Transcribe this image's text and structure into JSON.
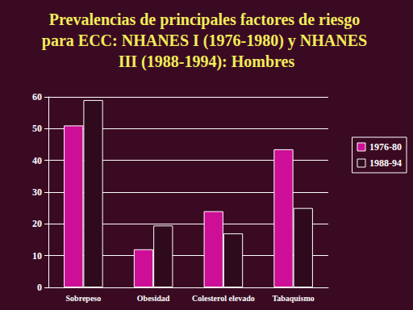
{
  "chart_data": {
    "type": "bar",
    "title": "Prevalencias de principales factores de riesgo para ECC: NHANES I (1976-1980) y NHANES III (1988-1994): Hombres",
    "categories": [
      "Sobrepeso",
      "Obesidad",
      "Colesterol elevado",
      "Tabaquismo"
    ],
    "series": [
      {
        "name": "1976-80",
        "color": "#cc0f96",
        "values": [
          51,
          12,
          24,
          43.5
        ]
      },
      {
        "name": "1988-94",
        "color": "#2e0a1c",
        "values": [
          59,
          19.5,
          17,
          25
        ]
      }
    ],
    "ylim": [
      0,
      60
    ],
    "yticks": [
      0,
      10,
      20,
      30,
      40,
      50,
      60
    ],
    "grid": true,
    "legend": "right"
  }
}
